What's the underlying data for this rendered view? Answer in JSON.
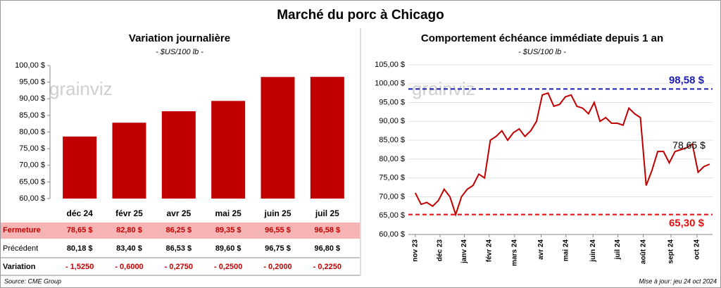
{
  "title": "Marché du porc à Chicago",
  "watermark": "grainviz",
  "chart_data": [
    {
      "type": "bar",
      "title": "Variation journalière",
      "subtitle": "- $US/100 lb -",
      "categories": [
        "déc 24",
        "févr 25",
        "avr 25",
        "mai 25",
        "juin 25",
        "juil 25"
      ],
      "values": [
        78.65,
        82.8,
        86.25,
        89.35,
        96.55,
        96.58
      ],
      "color": "#c00000",
      "ylim": [
        60,
        100
      ],
      "yticks": [
        {
          "value": 60,
          "label": "60,00 $"
        },
        {
          "value": 65,
          "label": "65,00 $"
        },
        {
          "value": 70,
          "label": "70,00 $"
        },
        {
          "value": 75,
          "label": "75,00 $"
        },
        {
          "value": 80,
          "label": "80,00 $"
        },
        {
          "value": 85,
          "label": "85,00 $"
        },
        {
          "value": 90,
          "label": "90,00 $"
        },
        {
          "value": 95,
          "label": "95,00 $"
        },
        {
          "value": 100,
          "label": "100,00 $"
        }
      ],
      "grid": false
    },
    {
      "type": "line",
      "title": "Comportement échéance immédiate depuis 1 an",
      "subtitle": "- $US/100 lb -",
      "x": [
        0,
        1,
        2,
        3,
        4,
        5,
        6,
        7,
        8,
        9,
        10,
        11,
        12,
        13,
        14,
        15,
        16,
        17,
        18,
        19,
        20,
        21,
        22,
        23,
        24,
        25,
        26,
        27,
        28,
        29,
        30,
        31,
        32,
        33,
        34,
        35,
        36,
        37,
        38,
        39,
        40,
        41,
        42,
        43,
        44,
        45,
        46,
        47,
        48,
        49,
        50,
        51
      ],
      "values": [
        71,
        68,
        68.5,
        67.5,
        69,
        72,
        70,
        65.3,
        70,
        72,
        73,
        76,
        75,
        85,
        86,
        87.5,
        85,
        87,
        88,
        86,
        87.5,
        90,
        97,
        97.5,
        94,
        94.5,
        96.5,
        97,
        94,
        93.5,
        92,
        95,
        90,
        91,
        89.5,
        89.5,
        89,
        93.5,
        92,
        91,
        73,
        77,
        82,
        82,
        79,
        82,
        82.5,
        83,
        84,
        76.5,
        78,
        78.65
      ],
      "color": "#c00000",
      "xlim": [
        -1.2,
        51.5
      ],
      "xticks": [
        {
          "value": 0,
          "label": "nov 23"
        },
        {
          "value": 4.3,
          "label": "déc 23"
        },
        {
          "value": 8.5,
          "label": "janv 24"
        },
        {
          "value": 12.8,
          "label": "févr 24"
        },
        {
          "value": 17.2,
          "label": "mars 24"
        },
        {
          "value": 21.8,
          "label": "avr 24"
        },
        {
          "value": 26.1,
          "label": "mai 24"
        },
        {
          "value": 30.8,
          "label": "juin 24"
        },
        {
          "value": 35.1,
          "label": "juil 24"
        },
        {
          "value": 39.5,
          "label": "août 24"
        },
        {
          "value": 44.3,
          "label": "sept 24"
        },
        {
          "value": 48.8,
          "label": "oct 24"
        }
      ],
      "ylim": [
        60,
        105
      ],
      "yticks": [
        {
          "value": 60,
          "label": "60,00 $"
        },
        {
          "value": 65,
          "label": "65,00 $"
        },
        {
          "value": 70,
          "label": "70,00 $"
        },
        {
          "value": 75,
          "label": "75,00 $"
        },
        {
          "value": 80,
          "label": "80,00 $"
        },
        {
          "value": 85,
          "label": "85,00 $"
        },
        {
          "value": 90,
          "label": "90,00 $"
        },
        {
          "value": 95,
          "label": "95,00 $"
        },
        {
          "value": 100,
          "label": "100,00 $"
        },
        {
          "value": 105,
          "label": "105,00 $"
        }
      ],
      "grid": true,
      "reference_lines": [
        {
          "value": 98.58,
          "label": "98,58 $",
          "color": "#1c1cb0"
        },
        {
          "value": 65.3,
          "label": "65,30 $",
          "color": "#e01010"
        }
      ],
      "last_label": "78,65 $"
    }
  ],
  "table": {
    "rows": [
      {
        "label": "Fermeture",
        "cells": [
          "78,65 $",
          "82,80 $",
          "86,25 $",
          "89,35 $",
          "96,55 $",
          "96,58 $"
        ]
      },
      {
        "label": "Précédent",
        "cells": [
          "80,18 $",
          "83,40 $",
          "86,53 $",
          "89,60 $",
          "96,75 $",
          "96,80 $"
        ]
      },
      {
        "label": "Variation",
        "cells": [
          "- 1,5250",
          "- 0,6000",
          "- 0,2750",
          "- 0,2500",
          "- 0,2000",
          "- 0,2250"
        ]
      }
    ]
  },
  "footer": {
    "source": "Source: CME Group",
    "updated": "Mise à jour: jeu 24 oct 2024"
  }
}
